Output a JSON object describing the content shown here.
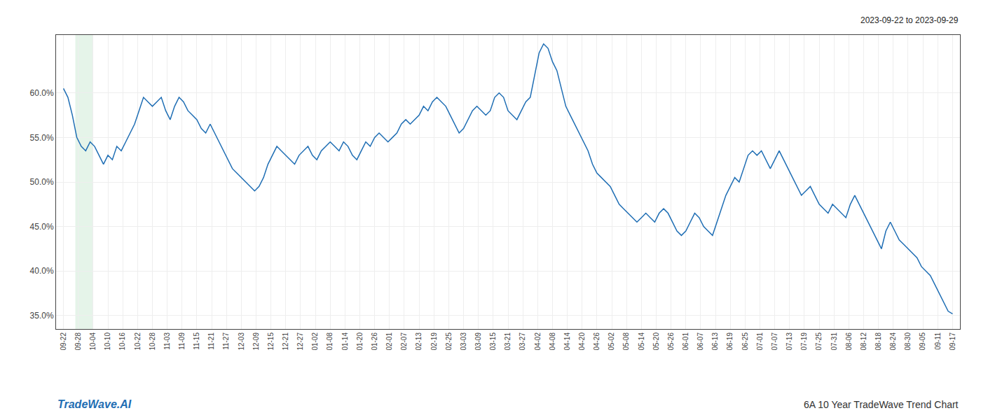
{
  "chart_data": {
    "type": "line",
    "annotations": [
      "2023-09-22 to 2023-09-29",
      "TradeWave.AI",
      "6A 10 Year TradeWave Trend Chart"
    ],
    "color": "#1f6eb4",
    "grid": true,
    "shaded_region": {
      "x": [
        0.8,
        2.0
      ],
      "color": "#d4edda"
    },
    "xlim": [
      -0.5,
      60.5
    ],
    "xticks": [
      {
        "value": 0,
        "label": "09-22"
      },
      {
        "value": 1,
        "label": "09-28"
      },
      {
        "value": 2,
        "label": "10-04"
      },
      {
        "value": 3,
        "label": "10-10"
      },
      {
        "value": 4,
        "label": "10-16"
      },
      {
        "value": 5,
        "label": "10-22"
      },
      {
        "value": 6,
        "label": "10-28"
      },
      {
        "value": 7,
        "label": "11-03"
      },
      {
        "value": 8,
        "label": "11-09"
      },
      {
        "value": 9,
        "label": "11-15"
      },
      {
        "value": 10,
        "label": "11-21"
      },
      {
        "value": 11,
        "label": "11-27"
      },
      {
        "value": 12,
        "label": "12-03"
      },
      {
        "value": 13,
        "label": "12-09"
      },
      {
        "value": 14,
        "label": "12-15"
      },
      {
        "value": 15,
        "label": "12-21"
      },
      {
        "value": 16,
        "label": "12-27"
      },
      {
        "value": 17,
        "label": "01-02"
      },
      {
        "value": 18,
        "label": "01-08"
      },
      {
        "value": 19,
        "label": "01-14"
      },
      {
        "value": 20,
        "label": "01-20"
      },
      {
        "value": 21,
        "label": "01-26"
      },
      {
        "value": 22,
        "label": "02-01"
      },
      {
        "value": 23,
        "label": "02-07"
      },
      {
        "value": 24,
        "label": "02-13"
      },
      {
        "value": 25,
        "label": "02-19"
      },
      {
        "value": 26,
        "label": "02-25"
      },
      {
        "value": 27,
        "label": "03-03"
      },
      {
        "value": 28,
        "label": "03-09"
      },
      {
        "value": 29,
        "label": "03-15"
      },
      {
        "value": 30,
        "label": "03-21"
      },
      {
        "value": 31,
        "label": "03-27"
      },
      {
        "value": 32,
        "label": "04-02"
      },
      {
        "value": 33,
        "label": "04-08"
      },
      {
        "value": 34,
        "label": "04-14"
      },
      {
        "value": 35,
        "label": "04-20"
      },
      {
        "value": 36,
        "label": "04-26"
      },
      {
        "value": 37,
        "label": "05-02"
      },
      {
        "value": 38,
        "label": "05-08"
      },
      {
        "value": 39,
        "label": "05-14"
      },
      {
        "value": 40,
        "label": "05-20"
      },
      {
        "value": 41,
        "label": "05-26"
      },
      {
        "value": 42,
        "label": "06-01"
      },
      {
        "value": 43,
        "label": "06-07"
      },
      {
        "value": 44,
        "label": "06-13"
      },
      {
        "value": 45,
        "label": "06-19"
      },
      {
        "value": 46,
        "label": "06-25"
      },
      {
        "value": 47,
        "label": "07-01"
      },
      {
        "value": 48,
        "label": "07-07"
      },
      {
        "value": 49,
        "label": "07-13"
      },
      {
        "value": 50,
        "label": "07-19"
      },
      {
        "value": 51,
        "label": "07-25"
      },
      {
        "value": 52,
        "label": "07-31"
      },
      {
        "value": 53,
        "label": "08-06"
      },
      {
        "value": 54,
        "label": "08-12"
      },
      {
        "value": 55,
        "label": "08-18"
      },
      {
        "value": 56,
        "label": "08-24"
      },
      {
        "value": 57,
        "label": "08-30"
      },
      {
        "value": 58,
        "label": "09-05"
      },
      {
        "value": 59,
        "label": "09-11"
      },
      {
        "value": 60,
        "label": "09-17"
      }
    ],
    "ylim": [
      33.5,
      66.5
    ],
    "yticks": [
      {
        "value": 35.0,
        "label": "35.0%"
      },
      {
        "value": 40.0,
        "label": "40.0%"
      },
      {
        "value": 45.0,
        "label": "45.0%"
      },
      {
        "value": 50.0,
        "label": "50.0%"
      },
      {
        "value": 55.0,
        "label": "55.0%"
      },
      {
        "value": 60.0,
        "label": "60.0%"
      }
    ],
    "x": [
      0,
      0.3,
      0.6,
      0.9,
      1.2,
      1.5,
      1.8,
      2.1,
      2.4,
      2.7,
      3,
      3.3,
      3.6,
      3.9,
      4.2,
      4.5,
      4.8,
      5.1,
      5.4,
      5.7,
      6,
      6.3,
      6.6,
      6.9,
      7.2,
      7.5,
      7.8,
      8.1,
      8.4,
      8.7,
      9,
      9.3,
      9.6,
      9.9,
      10.2,
      10.5,
      10.8,
      11.1,
      11.4,
      11.7,
      12,
      12.3,
      12.6,
      12.9,
      13.2,
      13.5,
      13.8,
      14.1,
      14.4,
      14.7,
      15,
      15.3,
      15.6,
      15.9,
      16.2,
      16.5,
      16.8,
      17.1,
      17.4,
      17.7,
      18,
      18.3,
      18.6,
      18.9,
      19.2,
      19.5,
      19.8,
      20.1,
      20.4,
      20.7,
      21,
      21.3,
      21.6,
      21.9,
      22.2,
      22.5,
      22.8,
      23.1,
      23.4,
      23.7,
      24,
      24.3,
      24.6,
      24.9,
      25.2,
      25.5,
      25.8,
      26.1,
      26.4,
      26.7,
      27,
      27.3,
      27.6,
      27.9,
      28.2,
      28.5,
      28.8,
      29.1,
      29.4,
      29.7,
      30,
      30.3,
      30.6,
      30.9,
      31.2,
      31.5,
      31.8,
      32.1,
      32.4,
      32.7,
      33,
      33.3,
      33.6,
      33.9,
      34.2,
      34.5,
      34.8,
      35.1,
      35.4,
      35.7,
      36,
      36.3,
      36.6,
      36.9,
      37.2,
      37.5,
      37.8,
      38.1,
      38.4,
      38.7,
      39,
      39.3,
      39.6,
      39.9,
      40.2,
      40.5,
      40.8,
      41.1,
      41.4,
      41.7,
      42,
      42.3,
      42.6,
      42.9,
      43.2,
      43.5,
      43.8,
      44.1,
      44.4,
      44.7,
      45,
      45.3,
      45.6,
      45.9,
      46.2,
      46.5,
      46.8,
      47.1,
      47.4,
      47.7,
      48,
      48.3,
      48.6,
      48.9,
      49.2,
      49.5,
      49.8,
      50.1,
      50.4,
      50.7,
      51,
      51.3,
      51.6,
      51.9,
      52.2,
      52.5,
      52.8,
      53.1,
      53.4,
      53.7,
      54,
      54.3,
      54.6,
      54.9,
      55.2,
      55.5,
      55.8,
      56.1,
      56.4,
      56.7,
      57,
      57.3,
      57.6,
      57.9,
      58.2,
      58.5,
      58.8,
      59.1,
      59.4,
      59.7,
      60
    ],
    "values": [
      60.5,
      59.5,
      57.5,
      55.0,
      54.0,
      53.5,
      54.5,
      54.0,
      53.0,
      52.0,
      53.0,
      52.5,
      54.0,
      53.5,
      54.5,
      55.5,
      56.5,
      58.0,
      59.5,
      59.0,
      58.5,
      59.0,
      59.5,
      58.0,
      57.0,
      58.5,
      59.5,
      59.0,
      58.0,
      57.5,
      57.0,
      56.0,
      55.5,
      56.5,
      55.5,
      54.5,
      53.5,
      52.5,
      51.5,
      51.0,
      50.5,
      50.0,
      49.5,
      49.0,
      49.5,
      50.5,
      52.0,
      53.0,
      54.0,
      53.5,
      53.0,
      52.5,
      52.0,
      53.0,
      53.5,
      54.0,
      53.0,
      52.5,
      53.5,
      54.0,
      54.5,
      54.0,
      53.5,
      54.5,
      54.0,
      53.0,
      52.5,
      53.5,
      54.5,
      54.0,
      55.0,
      55.5,
      55.0,
      54.5,
      55.0,
      55.5,
      56.5,
      57.0,
      56.5,
      57.0,
      57.5,
      58.5,
      58.0,
      59.0,
      59.5,
      59.0,
      58.5,
      57.5,
      56.5,
      55.5,
      56.0,
      57.0,
      58.0,
      58.5,
      58.0,
      57.5,
      58.0,
      59.5,
      60.0,
      59.5,
      58.0,
      57.5,
      57.0,
      58.0,
      59.0,
      59.5,
      62.0,
      64.5,
      65.5,
      65.0,
      63.5,
      62.5,
      60.5,
      58.5,
      57.5,
      56.5,
      55.5,
      54.5,
      53.5,
      52.0,
      51.0,
      50.5,
      50.0,
      49.5,
      48.5,
      47.5,
      47.0,
      46.5,
      46.0,
      45.5,
      46.0,
      46.5,
      46.0,
      45.5,
      46.5,
      47.0,
      46.5,
      45.5,
      44.5,
      44.0,
      44.5,
      45.5,
      46.5,
      46.0,
      45.0,
      44.5,
      44.0,
      45.5,
      47.0,
      48.5,
      49.5,
      50.5,
      50.0,
      51.5,
      53.0,
      53.5,
      53.0,
      53.5,
      52.5,
      51.5,
      52.5,
      53.5,
      52.5,
      51.5,
      50.5,
      49.5,
      48.5,
      49.0,
      49.5,
      48.5,
      47.5,
      47.0,
      46.5,
      47.5,
      47.0,
      46.5,
      46.0,
      47.5,
      48.5,
      47.5,
      46.5,
      45.5,
      44.5,
      43.5,
      42.5,
      44.5,
      45.5,
      44.5,
      43.5,
      43.0,
      42.5,
      42.0,
      41.5,
      40.5,
      40.0,
      39.5,
      38.5,
      37.5,
      36.5,
      35.5,
      35.2
    ]
  }
}
